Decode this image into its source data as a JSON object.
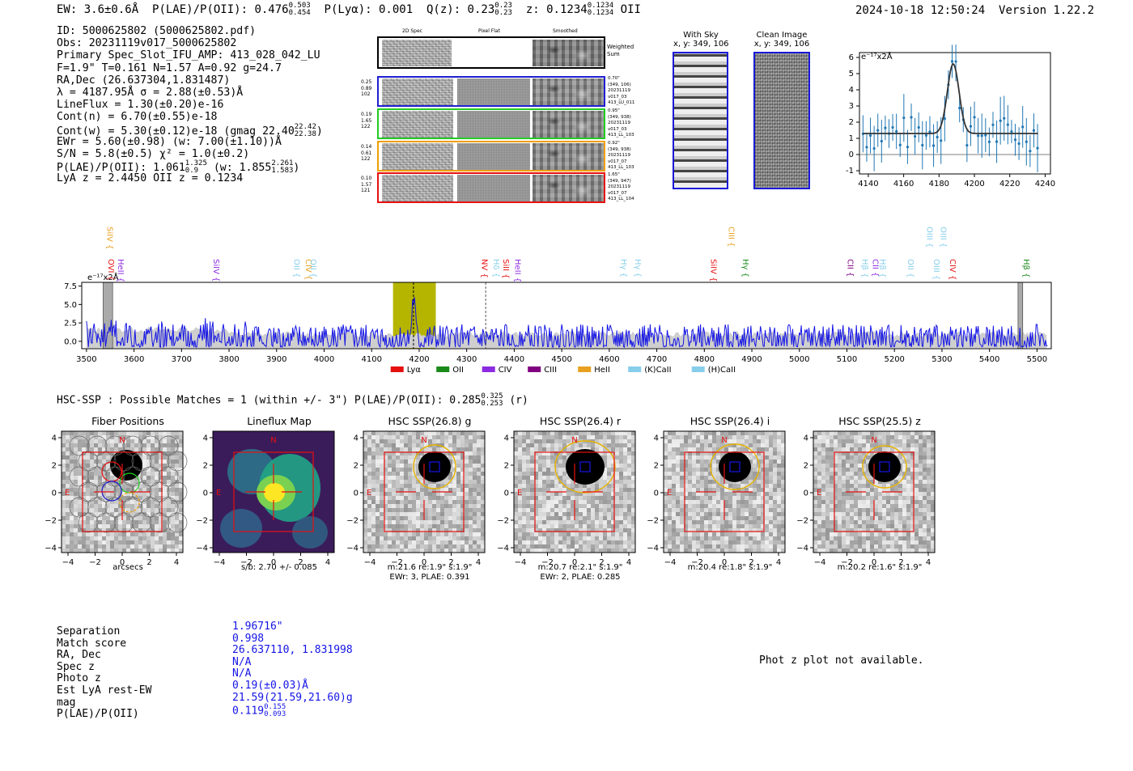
{
  "header": {
    "ew_label": "EW: 3.6±0.6Å",
    "plae_label": "P(LAE)/P(OII): 0.476",
    "plae_hi": "0.503",
    "plae_lo": "0.454",
    "plya_label": "P(Lyα): 0.001",
    "q_label": "Q(z): 0.23",
    "q_hi": "0.23",
    "q_lo": "0.23",
    "z_label": "z: 0.1234",
    "z_hi": "0.1234",
    "z_lo": "0.1234",
    "z_line": "OII",
    "timestamp": "2024-10-18 12:50:24",
    "version": "Version 1.22.2"
  },
  "info": {
    "id": "ID: 5000625802 (5000625802.pdf)",
    "obs": "Obs: 20231119v017_5000625802",
    "primary": "Primary Spec_Slot_IFU_AMP: 413_028_042_LU",
    "fwhm": "F=1.9\"  T=0.161  N=1.57  A=0.92  g=24.7",
    "radec": "RA,Dec (26.637304,1.831487)",
    "lambda": "λ = 4187.95Å  σ = 2.88(±0.53)Å",
    "lineflux": "LineFlux = 1.30(±0.20)e-16",
    "contn": "Cont(n) = 6.70(±0.55)e-18",
    "contw": "Cont(w) = 5.30(±0.12)e-18 (gmag 22.40",
    "contw_hi": "22.42",
    "contw_lo": "22.38",
    "ewr": "EWr = 5.60(±0.98) (w: 7.00(±1.10))Å",
    "sn": "S/N = 5.8(±0.5)  χ² = 1.0(±0.2)",
    "plae": "P(LAE)/P(OII): 1.061",
    "plae_hi": "1.325",
    "plae_lo": "0.9",
    "plae_w": "(w: 1.855",
    "plae_w_hi": "2.261",
    "plae_w_lo": "1.583",
    "lya_z": "LyA z = 2.4450  OII z = 0.1234"
  },
  "cutouts": {
    "col_headers": [
      "2D Spec",
      "Pixel Flat",
      "Smoothed"
    ],
    "weighted_sum": "Weighted Sum",
    "rows": [
      {
        "left": [
          "0.25",
          "0.89",
          "102"
        ],
        "right": [
          "0.70\"",
          "(349, 106)",
          "20231119",
          "v017_03",
          "413_LU_011"
        ],
        "color": "#1f1fd0"
      },
      {
        "left": [
          "0.19",
          "1.65",
          "122"
        ],
        "right": [
          "0.95\"",
          "(349, 938)",
          "20231119",
          "v017_03",
          "413_LL_103"
        ],
        "color": "#22cc22"
      },
      {
        "left": [
          "0.14",
          "0.61",
          "122"
        ],
        "right": [
          "0.92\"",
          "(349, 938)",
          "20231119",
          "v017_07",
          "413_LL_103"
        ],
        "color": "#f0a000"
      },
      {
        "left": [
          "0.10",
          "1.57",
          "121"
        ],
        "right": [
          "1.65\"",
          "(349, 947)",
          "20231119",
          "v017_07",
          "413_LL_104"
        ],
        "color": "#e61010"
      }
    ],
    "with_sky_title": "With Sky",
    "with_sky_coords": "x, y: 349, 106",
    "clean_title": "Clean Image",
    "clean_coords": "x, y: 349, 106"
  },
  "zoom_plot": {
    "unit_label": "e⁻¹⁷x2Å",
    "x_ticks": [
      "4140",
      "4160",
      "4180",
      "4200",
      "4220",
      "4240"
    ],
    "y_ticks": [
      "6",
      "5",
      "4",
      "3",
      "2",
      "1",
      "0",
      "-1"
    ]
  },
  "spectrum": {
    "unit_label": "e⁻¹⁷x2Å",
    "x_ticks": [
      "3500",
      "3600",
      "3700",
      "3800",
      "3900",
      "4000",
      "4100",
      "4200",
      "4300",
      "4400",
      "4500",
      "4600",
      "4700",
      "4800",
      "4900",
      "5000",
      "5100",
      "5200",
      "5300",
      "5400",
      "5500"
    ],
    "y_ticks": [
      "7.5",
      "5.0",
      "2.5",
      "0.0"
    ],
    "line_labels": [
      {
        "text": "SiIV",
        "color": "#e8a020",
        "wave": 3537,
        "row": 0
      },
      {
        "text": "OVI",
        "color": "#e61010",
        "wave": 3539,
        "row": 1
      },
      {
        "text": "HeII",
        "color": "#8c2be2",
        "wave": 3560,
        "row": 1
      },
      {
        "text": "SiIV",
        "color": "#8c2be2",
        "wave": 3761,
        "row": 1
      },
      {
        "text": "OII",
        "color": "#87ceeb",
        "wave": 3930,
        "row": 1
      },
      {
        "text": "CIV",
        "color": "#e8a020",
        "wave": 3955,
        "row": 1
      },
      {
        "text": "OII",
        "color": "#87ceeb",
        "wave": 3965,
        "row": 1
      },
      {
        "text": "NV",
        "color": "#e61010",
        "wave": 4325,
        "row": 1
      },
      {
        "text": "Hδ",
        "color": "#87ceeb",
        "wave": 4350,
        "row": 1
      },
      {
        "text": "SiII",
        "color": "#e61010",
        "wave": 4370,
        "row": 1
      },
      {
        "text": "HeII",
        "color": "#8c2be2",
        "wave": 4395,
        "row": 1
      },
      {
        "text": "Hγ",
        "color": "#87ceeb",
        "wave": 4618,
        "row": 1
      },
      {
        "text": "Hγ",
        "color": "#87ceeb",
        "wave": 4648,
        "row": 1
      },
      {
        "text": "SiIV",
        "color": "#e61010",
        "wave": 4807,
        "row": 1
      },
      {
        "text": "CIII",
        "color": "#e8a020",
        "wave": 4845,
        "row": 0
      },
      {
        "text": "Hγ",
        "color": "#1a8a1a",
        "wave": 4874,
        "row": 1
      },
      {
        "text": "CII",
        "color": "#800080",
        "wave": 5095,
        "row": 1
      },
      {
        "text": "Hβ",
        "color": "#87ceeb",
        "wave": 5126,
        "row": 1
      },
      {
        "text": "CII",
        "color": "#8c2be2",
        "wave": 5148,
        "row": 1
      },
      {
        "text": "Hβ",
        "color": "#87ceeb",
        "wave": 5163,
        "row": 1
      },
      {
        "text": "OII",
        "color": "#87ceeb",
        "wave": 5222,
        "row": 1
      },
      {
        "text": "OIII",
        "color": "#87ceeb",
        "wave": 5262,
        "row": 0
      },
      {
        "text": "OIII",
        "color": "#87ceeb",
        "wave": 5276,
        "row": 1
      },
      {
        "text": "OIII",
        "color": "#87ceeb",
        "wave": 5291,
        "row": 0
      },
      {
        "text": "CIV",
        "color": "#e61010",
        "wave": 5310,
        "row": 1
      },
      {
        "text": "Hβ",
        "color": "#1a8a1a",
        "wave": 5465,
        "row": 1
      }
    ],
    "legend": [
      {
        "label": "Lyα",
        "color": "#e61010"
      },
      {
        "label": "OII",
        "color": "#1a8a1a"
      },
      {
        "label": "CIV",
        "color": "#8c2be2"
      },
      {
        "label": "CIII",
        "color": "#800080"
      },
      {
        "label": "HeII",
        "color": "#e8a020"
      },
      {
        "label": "(K)CaII",
        "color": "#87ceeb"
      },
      {
        "label": "(H)CaII",
        "color": "#87ceeb"
      }
    ]
  },
  "hsc": {
    "summary": "HSC-SSP : Possible Matches = 1 (within +/- 3\")  P(LAE)/P(OII): 0.285",
    "summary_hi": "0.325",
    "summary_lo": "0.253",
    "summary_band": "(r)",
    "panels": [
      {
        "title": "Fiber Positions",
        "foot1": "arcsecs",
        "foot2": ""
      },
      {
        "title": "Lineflux Map",
        "foot1": "s/b: 2.70 +/- 0.085",
        "foot2": ""
      },
      {
        "title": "HSC SSP(26.8) g",
        "foot1": "m:21.6  re:1.9\"  s:1.9\"",
        "foot2": "EWr: 3, PLAE: 0.391"
      },
      {
        "title": "HSC SSP(26.4) r",
        "foot1": "m:20.7  re:2.1\"  s:1.9\"",
        "foot2": "EWr: 2, PLAE: 0.285"
      },
      {
        "title": "HSC SSP(26.4) i",
        "foot1": "m:20.4  re:1.8\"  s:1.9\"",
        "foot2": ""
      },
      {
        "title": "HSC SSP(25.5) z",
        "foot1": "m:20.2  re:1.6\"  s:1.9\"",
        "foot2": ""
      }
    ],
    "axis_ticks": [
      "4",
      "2",
      "0",
      "−2",
      "−4"
    ],
    "x_ticks": [
      "−4",
      "−2",
      "0",
      "2",
      "4"
    ],
    "north": "N",
    "east": "E"
  },
  "match": {
    "labels": [
      "Separation",
      "Match score",
      "RA, Dec",
      "Spec z",
      "Photo z",
      "Est LyA rest-EW",
      "mag",
      "P(LAE)/P(OII)"
    ],
    "values": [
      "1.96716\"",
      "0.998",
      "26.637110, 1.831998",
      "N/A",
      "N/A",
      "0.19(±0.03)Å",
      "21.59(21.59,21.60)g",
      "0.119"
    ],
    "plae_hi": "0.155",
    "plae_lo": "0.093",
    "photz_msg": "Phot z plot not available."
  }
}
